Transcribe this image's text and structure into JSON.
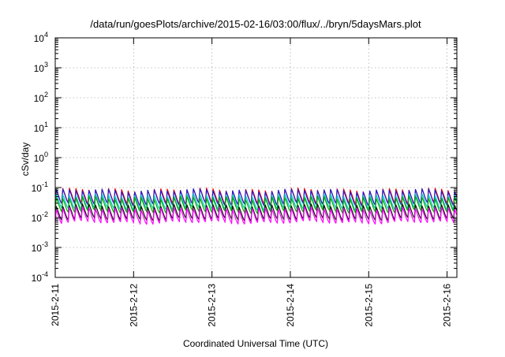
{
  "chart_data": {
    "type": "line",
    "title": "/data/run/goesPlots/archive/2015-02-16/03:00/flux/../bryn/5daysMars.plot",
    "xlabel": "Coordinated Universal Time (UTC)",
    "ylabel": "cSv/day",
    "y_scale": "log",
    "ylim": [
      0.0001,
      10000
    ],
    "y_ticks": [
      {
        "value": 0.0001,
        "base": "10",
        "exp": "-4"
      },
      {
        "value": 0.001,
        "base": "10",
        "exp": "-3"
      },
      {
        "value": 0.01,
        "base": "10",
        "exp": "-2"
      },
      {
        "value": 0.1,
        "base": "10",
        "exp": "-1"
      },
      {
        "value": 1,
        "base": "10",
        "exp": "0"
      },
      {
        "value": 10,
        "base": "10",
        "exp": "1"
      },
      {
        "value": 100,
        "base": "10",
        "exp": "2"
      },
      {
        "value": 1000,
        "base": "10",
        "exp": "3"
      },
      {
        "value": 10000,
        "base": "10",
        "exp": "4"
      }
    ],
    "x_range_days": [
      "2015-02-11T00:00",
      "2015-02-16T03:00"
    ],
    "x_ticks": [
      "2015-2-11",
      "2015-2-12",
      "2015-2-13",
      "2015-2-14",
      "2015-2-15",
      "2015-2-16"
    ],
    "grid": true,
    "cycle_hours": 2.0,
    "series": [
      {
        "color": "#ff0000",
        "peak": 0.085,
        "trough": 0.03
      },
      {
        "color": "#1f1fcc",
        "peak": 0.08,
        "trough": 0.028
      },
      {
        "color": "#00c8c8",
        "peak": 0.055,
        "trough": 0.02
      },
      {
        "color": "#00aa00",
        "peak": 0.045,
        "trough": 0.016
      },
      {
        "color": "#111111",
        "peak": 0.025,
        "trough": 0.009
      },
      {
        "color": "#ff00ff",
        "peak": 0.02,
        "trough": 0.007
      }
    ]
  }
}
